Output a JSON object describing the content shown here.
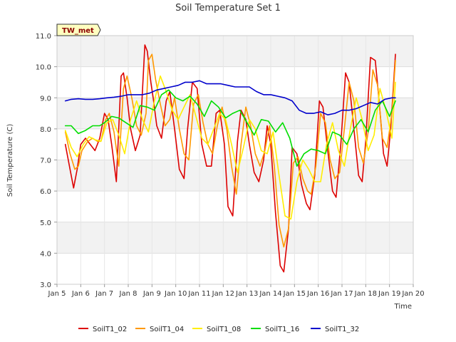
{
  "chart_data": {
    "type": "line",
    "title": "Soil Temperature Set 1",
    "xlabel": "Time",
    "ylabel": "Soil Temperature (C)",
    "badge": "TW_met",
    "xlim": [
      5,
      20
    ],
    "ylim": [
      3.0,
      11.0
    ],
    "x_ticks": [
      5,
      6,
      7,
      8,
      9,
      10,
      11,
      12,
      13,
      14,
      15,
      16,
      17,
      18,
      19,
      20
    ],
    "x_tick_labels": [
      "Jan 5",
      "Jan 6",
      "Jan 7",
      "Jan 8",
      "Jan 9",
      "Jan 10",
      "Jan 11",
      "Jan 12",
      "Jan 13",
      "Jan 14",
      "Jan 15",
      "Jan 16",
      "Jan 17",
      "Jan 18",
      "Jan 19",
      "Jan 20"
    ],
    "y_ticks": [
      3.0,
      4.0,
      5.0,
      6.0,
      7.0,
      8.0,
      9.0,
      10.0,
      11.0
    ],
    "y_tick_labels": [
      "3.0",
      "4.0",
      "5.0",
      "6.0",
      "7.0",
      "8.0",
      "9.0",
      "10.0",
      "11.0"
    ],
    "grid": true,
    "legend_position": "bottom",
    "series": [
      {
        "name": "SoilT1_02",
        "color": "#dd0000",
        "x": [
          5.35,
          5.55,
          5.7,
          5.85,
          6.0,
          6.2,
          6.4,
          6.6,
          6.8,
          7.0,
          7.15,
          7.3,
          7.5,
          7.7,
          7.8,
          7.95,
          8.1,
          8.3,
          8.5,
          8.7,
          8.8,
          8.95,
          9.05,
          9.2,
          9.4,
          9.6,
          9.75,
          9.95,
          10.15,
          10.35,
          10.5,
          10.7,
          10.9,
          11.1,
          11.3,
          11.5,
          11.7,
          11.85,
          12.05,
          12.2,
          12.4,
          12.6,
          12.75,
          12.95,
          13.1,
          13.3,
          13.5,
          13.7,
          13.85,
          14.0,
          14.2,
          14.4,
          14.55,
          14.75,
          14.9,
          15.1,
          15.3,
          15.5,
          15.65,
          15.85,
          16.05,
          16.2,
          16.4,
          16.6,
          16.75,
          16.95,
          17.15,
          17.3,
          17.5,
          17.7,
          17.85,
          18.0,
          18.2,
          18.4,
          18.55,
          18.75,
          18.9,
          19.05,
          19.25
        ],
        "y": [
          7.5,
          6.7,
          6.1,
          6.7,
          7.5,
          7.7,
          7.5,
          7.3,
          7.7,
          8.5,
          8.3,
          7.5,
          6.3,
          9.7,
          9.8,
          9.0,
          8.0,
          7.3,
          7.8,
          10.7,
          10.5,
          9.5,
          9.0,
          8.1,
          7.7,
          8.9,
          9.2,
          8.0,
          6.7,
          6.4,
          8.0,
          9.5,
          9.3,
          7.5,
          6.8,
          6.8,
          8.5,
          8.6,
          7.5,
          5.5,
          5.2,
          7.6,
          8.6,
          8.3,
          7.5,
          6.6,
          6.3,
          7.0,
          8.1,
          7.5,
          5.3,
          3.6,
          3.4,
          4.8,
          7.4,
          7.2,
          6.2,
          5.6,
          5.4,
          6.5,
          8.9,
          8.7,
          7.3,
          6.0,
          5.8,
          7.5,
          9.8,
          9.5,
          8.0,
          6.5,
          6.3,
          7.6,
          10.3,
          10.2,
          9.0,
          7.2,
          6.8,
          8.0,
          10.4
        ]
      },
      {
        "name": "SoilT1_04",
        "color": "#ff9900",
        "x": [
          5.35,
          5.55,
          5.75,
          5.9,
          6.05,
          6.3,
          6.5,
          6.7,
          6.85,
          7.05,
          7.2,
          7.4,
          7.6,
          7.8,
          7.95,
          8.15,
          8.35,
          8.55,
          8.75,
          8.85,
          9.0,
          9.15,
          9.35,
          9.55,
          9.75,
          9.95,
          10.15,
          10.35,
          10.55,
          10.75,
          10.95,
          11.15,
          11.35,
          11.55,
          11.75,
          11.95,
          12.15,
          12.35,
          12.55,
          12.75,
          12.95,
          13.15,
          13.35,
          13.55,
          13.75,
          13.95,
          14.15,
          14.35,
          14.55,
          14.75,
          14.95,
          15.15,
          15.35,
          15.55,
          15.7,
          15.9,
          16.1,
          16.3,
          16.5,
          16.7,
          16.9,
          17.1,
          17.3,
          17.5,
          17.7,
          17.9,
          18.1,
          18.3,
          18.5,
          18.7,
          18.9,
          19.1,
          19.25
        ],
        "y": [
          7.9,
          7.2,
          6.7,
          6.8,
          7.3,
          7.6,
          7.7,
          7.6,
          7.6,
          8.3,
          8.5,
          7.9,
          6.8,
          9.3,
          9.7,
          9.0,
          8.1,
          7.8,
          8.5,
          10.2,
          10.4,
          9.6,
          8.8,
          8.1,
          8.3,
          9.0,
          8.0,
          7.2,
          7.0,
          8.8,
          9.1,
          8.2,
          7.5,
          7.2,
          8.1,
          8.7,
          8.0,
          6.8,
          5.9,
          7.5,
          8.7,
          8.1,
          7.2,
          6.8,
          7.3,
          8.1,
          6.8,
          4.9,
          4.2,
          4.8,
          6.9,
          7.1,
          6.4,
          6.0,
          5.9,
          6.8,
          8.5,
          8.2,
          7.0,
          6.4,
          6.6,
          8.0,
          9.5,
          8.9,
          7.4,
          6.9,
          7.9,
          9.9,
          9.4,
          7.7,
          7.4,
          8.5,
          10.2
        ]
      },
      {
        "name": "SoilT1_08",
        "color": "#ffee00",
        "x": [
          5.35,
          5.6,
          5.85,
          6.1,
          6.35,
          6.6,
          6.85,
          7.1,
          7.35,
          7.6,
          7.85,
          8.1,
          8.35,
          8.6,
          8.85,
          9.1,
          9.35,
          9.6,
          9.85,
          10.1,
          10.35,
          10.6,
          10.85,
          11.1,
          11.35,
          11.6,
          11.85,
          12.1,
          12.35,
          12.6,
          12.85,
          13.1,
          13.35,
          13.6,
          13.85,
          14.1,
          14.35,
          14.6,
          14.85,
          15.1,
          15.35,
          15.6,
          15.85,
          16.1,
          16.35,
          16.6,
          16.85,
          17.1,
          17.35,
          17.6,
          17.85,
          18.1,
          18.35,
          18.6,
          18.85,
          19.1,
          19.25
        ],
        "y": [
          7.95,
          7.4,
          7.1,
          7.5,
          7.75,
          7.65,
          7.6,
          8.2,
          8.3,
          7.8,
          7.2,
          8.3,
          8.9,
          8.3,
          7.9,
          8.9,
          9.7,
          9.2,
          8.6,
          8.3,
          8.7,
          9.1,
          8.4,
          7.7,
          7.5,
          8.0,
          8.5,
          8.3,
          7.5,
          6.6,
          7.4,
          8.3,
          8.0,
          7.3,
          7.2,
          7.9,
          6.5,
          5.2,
          5.1,
          6.3,
          7.0,
          6.7,
          6.3,
          6.3,
          7.5,
          8.2,
          7.3,
          6.8,
          8.0,
          9.0,
          8.3,
          7.3,
          7.8,
          9.3,
          8.6,
          7.7,
          9.5
        ]
      },
      {
        "name": "SoilT1_16",
        "color": "#00dd00",
        "x": [
          5.35,
          5.6,
          5.9,
          6.2,
          6.5,
          6.8,
          7.0,
          7.3,
          7.6,
          7.9,
          8.2,
          8.5,
          8.8,
          9.1,
          9.4,
          9.7,
          10.0,
          10.3,
          10.6,
          10.9,
          11.2,
          11.5,
          11.8,
          12.1,
          12.4,
          12.7,
          13.0,
          13.3,
          13.6,
          13.9,
          14.2,
          14.5,
          14.8,
          15.1,
          15.4,
          15.7,
          16.0,
          16.3,
          16.6,
          16.9,
          17.2,
          17.5,
          17.8,
          18.1,
          18.4,
          18.7,
          19.0,
          19.25
        ],
        "y": [
          8.1,
          8.1,
          7.85,
          7.95,
          8.1,
          8.1,
          8.2,
          8.4,
          8.35,
          8.2,
          8.05,
          8.75,
          8.7,
          8.6,
          9.1,
          9.25,
          9.0,
          8.9,
          9.05,
          8.8,
          8.4,
          8.9,
          8.7,
          8.35,
          8.5,
          8.6,
          8.2,
          7.8,
          8.3,
          8.25,
          7.9,
          8.2,
          7.7,
          6.8,
          7.2,
          7.35,
          7.3,
          7.2,
          7.9,
          7.8,
          7.5,
          8.0,
          8.3,
          7.9,
          8.6,
          8.9,
          8.4,
          8.9
        ]
      },
      {
        "name": "SoilT1_32",
        "color": "#0000cc",
        "x": [
          5.35,
          5.6,
          5.9,
          6.2,
          6.5,
          6.8,
          7.1,
          7.4,
          7.7,
          8.0,
          8.3,
          8.6,
          8.9,
          9.2,
          9.5,
          9.8,
          10.1,
          10.4,
          10.7,
          11.0,
          11.3,
          11.6,
          11.9,
          12.2,
          12.5,
          12.8,
          13.1,
          13.4,
          13.7,
          14.0,
          14.3,
          14.6,
          14.9,
          15.2,
          15.5,
          15.8,
          16.1,
          16.4,
          16.7,
          17.0,
          17.3,
          17.6,
          17.9,
          18.2,
          18.5,
          18.8,
          19.1,
          19.25
        ],
        "y": [
          8.9,
          8.95,
          8.97,
          8.95,
          8.95,
          8.97,
          9.0,
          9.02,
          9.05,
          9.1,
          9.1,
          9.1,
          9.15,
          9.25,
          9.3,
          9.35,
          9.4,
          9.5,
          9.5,
          9.55,
          9.45,
          9.45,
          9.45,
          9.4,
          9.35,
          9.35,
          9.35,
          9.2,
          9.1,
          9.1,
          9.05,
          9.0,
          8.9,
          8.6,
          8.5,
          8.5,
          8.55,
          8.45,
          8.5,
          8.6,
          8.6,
          8.65,
          8.75,
          8.85,
          8.8,
          8.95,
          9.0,
          9.0
        ]
      }
    ]
  }
}
